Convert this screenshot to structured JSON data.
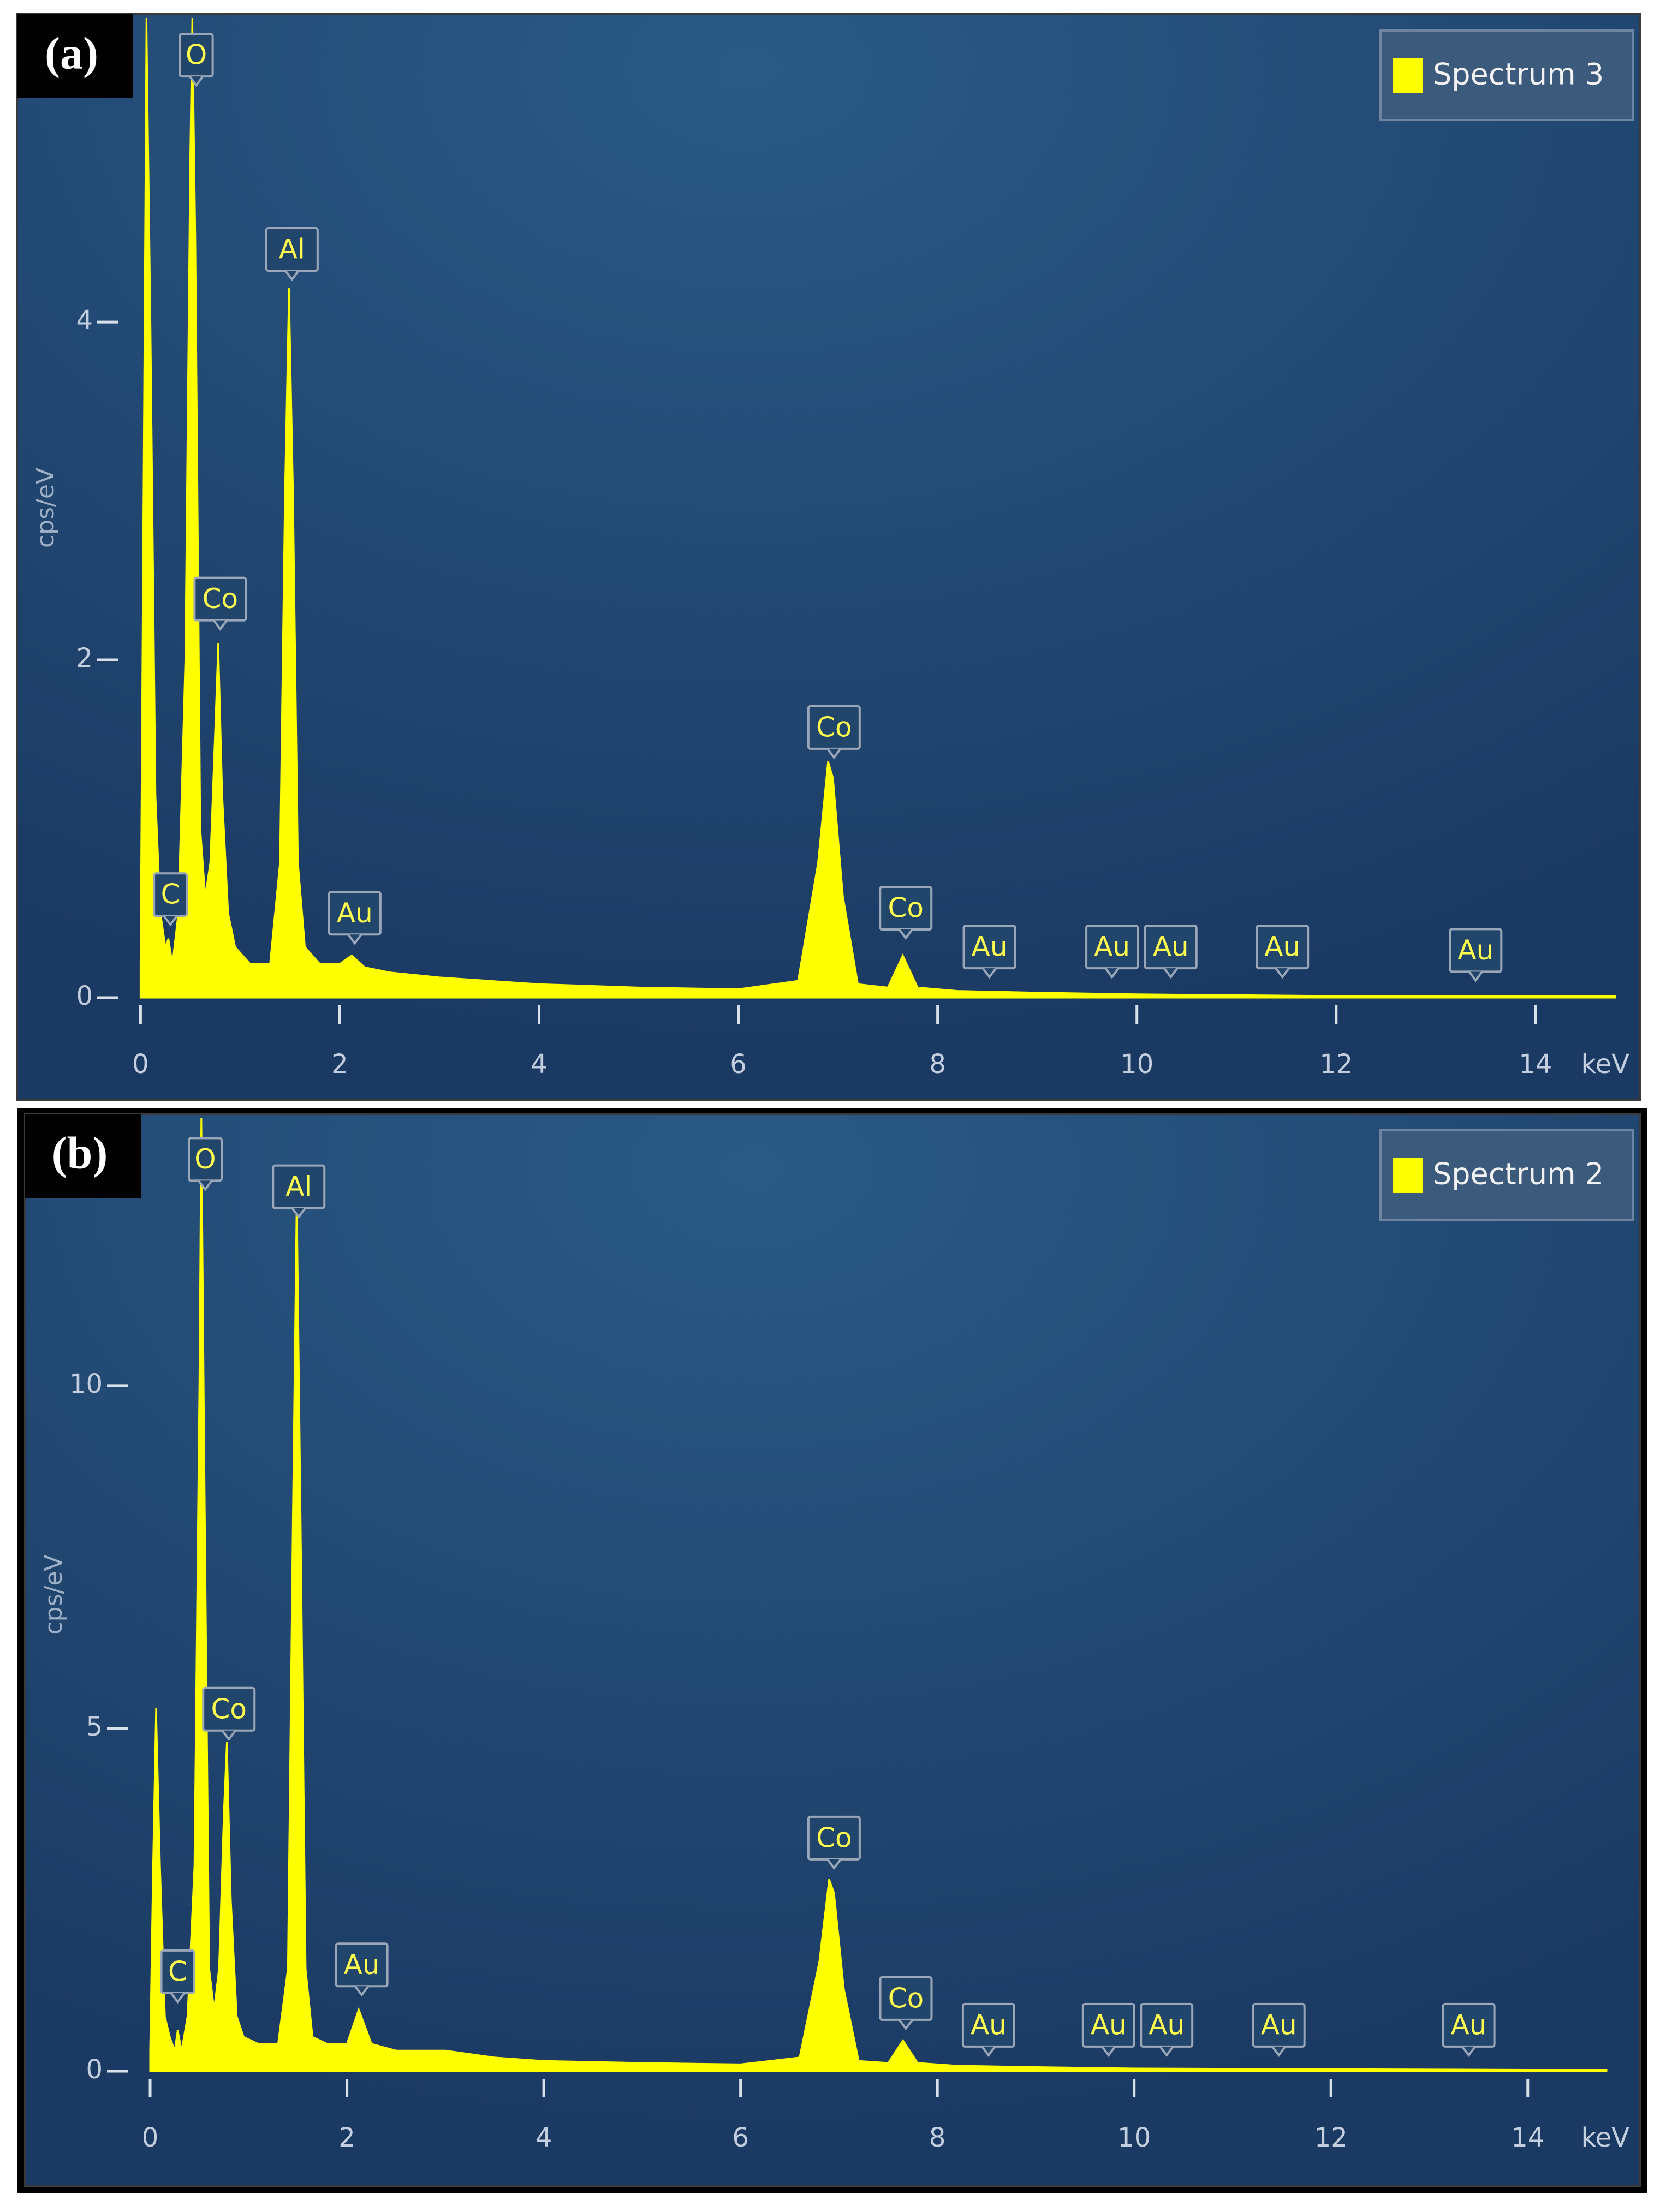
{
  "chart_data": [
    {
      "type": "area",
      "panel_label": "(a)",
      "xlabel": "keV",
      "ylabel": "cps/eV",
      "legend": "upper right",
      "xlim": [
        -0.15,
        14.85
      ],
      "ylim": [
        0,
        5.8
      ],
      "xticks": [
        0,
        2,
        4,
        6,
        8,
        10,
        12,
        14
      ],
      "yticks": [
        0,
        2,
        4
      ],
      "x": [
        0,
        0.03,
        0.06,
        0.1,
        0.15,
        0.2,
        0.25,
        0.28,
        0.32,
        0.38,
        0.45,
        0.5,
        0.52,
        0.55,
        0.6,
        0.65,
        0.7,
        0.75,
        0.78,
        0.82,
        0.88,
        0.95,
        1.1,
        1.3,
        1.4,
        1.45,
        1.49,
        1.53,
        1.58,
        1.65,
        1.8,
        2.0,
        2.12,
        2.25,
        2.5,
        3.0,
        3.5,
        4.0,
        5.0,
        6.0,
        6.6,
        6.8,
        6.9,
        6.95,
        7.05,
        7.2,
        7.5,
        7.65,
        7.8,
        8.2,
        9,
        10,
        12,
        14,
        14.8
      ],
      "series": [
        {
          "name": "Spectrum 3",
          "color": "#ffff00",
          "values": [
            0.2,
            3,
            5.8,
            4,
            1.2,
            0.5,
            0.3,
            0.35,
            0.2,
            0.5,
            2,
            5,
            5.8,
            4.5,
            1,
            0.6,
            0.8,
            1.6,
            2.1,
            1.2,
            0.5,
            0.3,
            0.2,
            0.2,
            0.8,
            3,
            4.2,
            3,
            0.8,
            0.3,
            0.2,
            0.2,
            0.25,
            0.18,
            0.15,
            0.12,
            0.1,
            0.08,
            0.06,
            0.05,
            0.1,
            0.8,
            1.4,
            1.3,
            0.6,
            0.08,
            0.06,
            0.25,
            0.06,
            0.04,
            0.03,
            0.02,
            0.01,
            0.01,
            0.01
          ]
        }
      ],
      "annotations": [
        {
          "text": "O",
          "x": 0.56,
          "y": 5.58
        },
        {
          "text": "Al",
          "x": 1.52,
          "y": 4.43
        },
        {
          "text": "Co",
          "x": 0.8,
          "y": 2.36
        },
        {
          "text": "C",
          "x": 0.3,
          "y": 0.61
        },
        {
          "text": "Au",
          "x": 2.15,
          "y": 0.5
        },
        {
          "text": "Co",
          "x": 6.96,
          "y": 1.6
        },
        {
          "text": "Co",
          "x": 7.68,
          "y": 0.53
        },
        {
          "text": "Au",
          "x": 8.52,
          "y": 0.3
        },
        {
          "text": "Au",
          "x": 9.75,
          "y": 0.3
        },
        {
          "text": "Au",
          "x": 10.34,
          "y": 0.3
        },
        {
          "text": "Au",
          "x": 11.46,
          "y": 0.3
        },
        {
          "text": "Au",
          "x": 13.4,
          "y": 0.28
        }
      ]
    },
    {
      "type": "area",
      "panel_label": "(b)",
      "xlabel": "keV",
      "ylabel": "cps/eV",
      "legend": "upper right",
      "xlim": [
        -0.15,
        14.85
      ],
      "ylim": [
        0,
        13.9
      ],
      "xticks": [
        0,
        2,
        4,
        6,
        8,
        10,
        12,
        14
      ],
      "yticks": [
        0,
        5,
        10
      ],
      "x": [
        0,
        0.03,
        0.06,
        0.1,
        0.15,
        0.2,
        0.25,
        0.28,
        0.32,
        0.38,
        0.45,
        0.5,
        0.52,
        0.55,
        0.6,
        0.65,
        0.7,
        0.75,
        0.78,
        0.82,
        0.88,
        0.95,
        1.1,
        1.3,
        1.4,
        1.45,
        1.49,
        1.53,
        1.58,
        1.65,
        1.8,
        2.0,
        2.12,
        2.25,
        2.5,
        3.0,
        3.5,
        4.0,
        5.0,
        6.0,
        6.6,
        6.8,
        6.9,
        6.95,
        7.05,
        7.2,
        7.5,
        7.65,
        7.8,
        8.2,
        9,
        10,
        12,
        14,
        14.8
      ],
      "series": [
        {
          "name": "Spectrum 2",
          "color": "#ffff00",
          "values": [
            0.3,
            3,
            5.3,
            3,
            0.8,
            0.5,
            0.3,
            0.6,
            0.3,
            0.8,
            3,
            10,
            13.9,
            9,
            1.5,
            0.9,
            1.5,
            3.8,
            4.8,
            2.5,
            0.8,
            0.5,
            0.4,
            0.4,
            1.5,
            8,
            12.8,
            8,
            1.5,
            0.5,
            0.4,
            0.4,
            0.9,
            0.4,
            0.3,
            0.3,
            0.2,
            0.15,
            0.12,
            0.1,
            0.2,
            1.6,
            2.8,
            2.6,
            1.2,
            0.15,
            0.12,
            0.45,
            0.12,
            0.08,
            0.06,
            0.04,
            0.03,
            0.02,
            0.02
          ]
        }
      ],
      "annotations": [
        {
          "text": "O",
          "x": 0.56,
          "y": 13.3
        },
        {
          "text": "Al",
          "x": 1.51,
          "y": 12.9
        },
        {
          "text": "Co",
          "x": 0.8,
          "y": 5.28
        },
        {
          "text": "C",
          "x": 0.28,
          "y": 1.45
        },
        {
          "text": "Au",
          "x": 2.15,
          "y": 1.55
        },
        {
          "text": "Co",
          "x": 6.95,
          "y": 3.4
        },
        {
          "text": "Co",
          "x": 7.68,
          "y": 1.06
        },
        {
          "text": "Au",
          "x": 8.52,
          "y": 0.67
        },
        {
          "text": "Au",
          "x": 9.74,
          "y": 0.67
        },
        {
          "text": "Au",
          "x": 10.33,
          "y": 0.67
        },
        {
          "text": "Au",
          "x": 11.47,
          "y": 0.67
        },
        {
          "text": "Au",
          "x": 13.4,
          "y": 0.67
        }
      ]
    }
  ]
}
